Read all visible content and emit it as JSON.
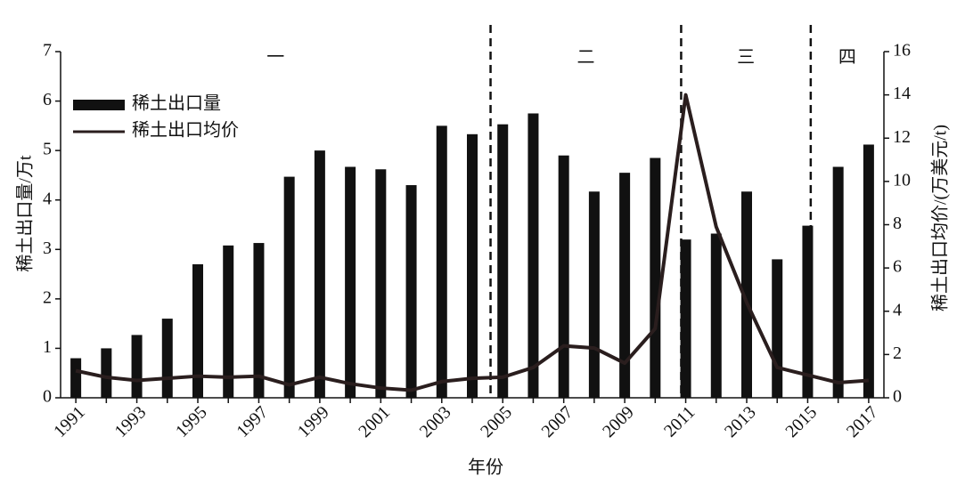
{
  "chart_data": {
    "type": "bar-line",
    "categories": [
      "1991",
      null,
      "1993",
      null,
      "1995",
      null,
      "1997",
      null,
      "1999",
      null,
      "2001",
      null,
      "2003",
      null,
      "2005",
      null,
      "2007",
      null,
      "2009",
      null,
      "2011",
      null,
      "2013",
      null,
      "2015",
      null,
      "2017"
    ],
    "series": [
      {
        "name": "稀土出口量",
        "type": "bar",
        "color": "#111111",
        "values": [
          0.8,
          1.0,
          1.27,
          1.6,
          2.7,
          3.08,
          3.13,
          4.47,
          5.0,
          4.67,
          4.62,
          4.3,
          5.5,
          5.33,
          5.53,
          5.75,
          4.9,
          4.17,
          4.55,
          4.85,
          3.2,
          3.32,
          4.17,
          2.8,
          3.48,
          4.67,
          5.12
        ]
      },
      {
        "name": "稀土出口均价",
        "type": "line",
        "axis": "y2",
        "color": "#2a1e1e",
        "values": [
          1.25,
          0.95,
          0.8,
          0.9,
          1.0,
          0.95,
          1.0,
          0.6,
          0.95,
          0.65,
          0.45,
          0.35,
          0.75,
          0.9,
          0.95,
          1.4,
          2.4,
          2.3,
          1.6,
          3.2,
          14.0,
          7.9,
          4.4,
          1.4,
          1.05,
          0.7,
          0.8
        ]
      }
    ],
    "ylim": [
      0,
      7
    ],
    "yticks": [
      0,
      1,
      2,
      3,
      4,
      5,
      6,
      7
    ],
    "y2lim": [
      0,
      16
    ],
    "y2ticks": [
      0,
      2,
      4,
      6,
      8,
      10,
      12,
      14,
      16
    ],
    "ylabel": "稀土出口量/万t",
    "y2label": "稀土出口均价/(万美元/t)",
    "xlabel": "年份",
    "phases": [
      "一",
      "二",
      "三",
      "四"
    ],
    "phase_boundaries": [
      2004.6,
      2010.85,
      2015.1
    ],
    "legend": "upper-left"
  }
}
